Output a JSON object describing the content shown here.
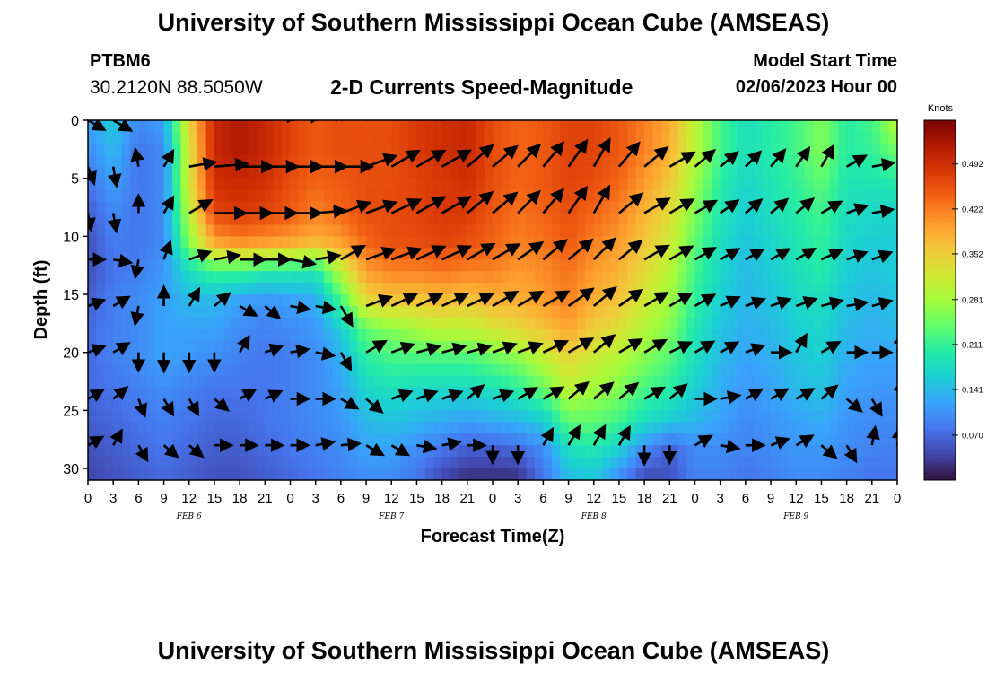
{
  "header": {
    "title": "University of Southern Mississippi Ocean Cube (AMSEAS)",
    "station_id": "PTBM6",
    "coordinates": "30.2120N  88.5050W",
    "subtitle": "2-D Currents Speed-Magnitude",
    "model_start_label": "Model Start Time",
    "model_start_value": "02/06/2023 Hour 00"
  },
  "footer": {
    "title": "University of Southern Mississippi Ocean Cube (AMSEAS)"
  },
  "chart_data": {
    "type": "heatmap",
    "title": "2-D Currents Speed-Magnitude",
    "xlabel": "Forecast Time(Z)",
    "ylabel": "Depth (ft)",
    "x_tick_labels": [
      "0",
      "3",
      "6",
      "9",
      "12",
      "15",
      "18",
      "21",
      "0",
      "3",
      "6",
      "9",
      "12",
      "15",
      "18",
      "21",
      "0",
      "3",
      "6",
      "9",
      "12",
      "15",
      "18",
      "21",
      "0",
      "3",
      "6",
      "9",
      "12",
      "15",
      "18",
      "21",
      "0"
    ],
    "x_hours": [
      0,
      3,
      6,
      9,
      12,
      15,
      18,
      21,
      24,
      27,
      30,
      33,
      36,
      39,
      42,
      45,
      48,
      51,
      54,
      57,
      60,
      63,
      66,
      69,
      72,
      75,
      78,
      81,
      84,
      87,
      90,
      93,
      96
    ],
    "day_labels": [
      {
        "label": "FEB 6",
        "hour": 12
      },
      {
        "label": "FEB 7",
        "hour": 36
      },
      {
        "label": "FEB 8",
        "hour": 60
      },
      {
        "label": "FEB 9",
        "hour": 84
      }
    ],
    "xlim": [
      0,
      96
    ],
    "y_ticks": [
      0,
      5,
      10,
      15,
      20,
      25,
      30
    ],
    "ylim": [
      0,
      31
    ],
    "y_inverted": true,
    "colorbar": {
      "title": "Knots",
      "ticks": [
        "0.492",
        "0.422",
        "0.352",
        "0.281",
        "0.211",
        "0.141",
        "0.070"
      ],
      "tick_values": [
        0.492,
        0.422,
        0.352,
        0.281,
        0.211,
        0.141,
        0.07
      ],
      "range": [
        0,
        0.56
      ],
      "colormap": [
        "#30123b",
        "#4145ab",
        "#4675ed",
        "#39a2fc",
        "#1bcfd4",
        "#24eca6",
        "#61fc6c",
        "#a4fc3b",
        "#d1e834",
        "#f3c63a",
        "#fe9b2d",
        "#f36315",
        "#d93806",
        "#b11901",
        "#7a0403"
      ]
    },
    "speed_knots": [
      [
        0.12,
        0.16,
        0.1,
        0.12,
        0.34,
        0.5,
        0.52,
        0.5,
        0.47,
        0.45,
        0.46,
        0.46,
        0.46,
        0.48,
        0.49,
        0.5,
        0.46,
        0.44,
        0.45,
        0.47,
        0.47,
        0.45,
        0.42,
        0.39,
        0.3,
        0.22,
        0.18,
        0.2,
        0.22,
        0.26,
        0.2,
        0.22,
        0.3
      ],
      [
        0.1,
        0.14,
        0.08,
        0.1,
        0.32,
        0.5,
        0.52,
        0.5,
        0.47,
        0.45,
        0.46,
        0.46,
        0.46,
        0.48,
        0.49,
        0.5,
        0.46,
        0.44,
        0.45,
        0.47,
        0.47,
        0.45,
        0.42,
        0.38,
        0.3,
        0.22,
        0.18,
        0.2,
        0.22,
        0.26,
        0.2,
        0.21,
        0.25
      ],
      [
        0.08,
        0.12,
        0.08,
        0.1,
        0.32,
        0.49,
        0.5,
        0.49,
        0.46,
        0.44,
        0.45,
        0.46,
        0.46,
        0.47,
        0.48,
        0.49,
        0.46,
        0.44,
        0.45,
        0.47,
        0.46,
        0.44,
        0.4,
        0.36,
        0.28,
        0.2,
        0.17,
        0.19,
        0.21,
        0.24,
        0.19,
        0.19,
        0.2
      ],
      [
        0.06,
        0.1,
        0.08,
        0.1,
        0.3,
        0.47,
        0.48,
        0.47,
        0.45,
        0.42,
        0.44,
        0.46,
        0.46,
        0.47,
        0.48,
        0.48,
        0.45,
        0.43,
        0.44,
        0.46,
        0.44,
        0.42,
        0.38,
        0.34,
        0.26,
        0.19,
        0.16,
        0.18,
        0.2,
        0.22,
        0.18,
        0.17,
        0.17
      ],
      [
        0.05,
        0.09,
        0.08,
        0.1,
        0.26,
        0.4,
        0.42,
        0.41,
        0.4,
        0.38,
        0.4,
        0.44,
        0.46,
        0.46,
        0.47,
        0.46,
        0.44,
        0.42,
        0.43,
        0.45,
        0.42,
        0.4,
        0.36,
        0.32,
        0.24,
        0.18,
        0.15,
        0.17,
        0.19,
        0.21,
        0.17,
        0.16,
        0.16
      ],
      [
        0.05,
        0.08,
        0.09,
        0.11,
        0.18,
        0.22,
        0.22,
        0.2,
        0.2,
        0.19,
        0.3,
        0.4,
        0.42,
        0.42,
        0.43,
        0.42,
        0.42,
        0.4,
        0.41,
        0.43,
        0.4,
        0.38,
        0.34,
        0.3,
        0.22,
        0.17,
        0.14,
        0.16,
        0.18,
        0.2,
        0.16,
        0.15,
        0.16
      ],
      [
        0.06,
        0.09,
        0.1,
        0.12,
        0.14,
        0.14,
        0.12,
        0.11,
        0.12,
        0.13,
        0.22,
        0.34,
        0.36,
        0.36,
        0.37,
        0.36,
        0.38,
        0.38,
        0.4,
        0.42,
        0.38,
        0.36,
        0.32,
        0.28,
        0.21,
        0.16,
        0.14,
        0.15,
        0.17,
        0.18,
        0.15,
        0.14,
        0.15
      ],
      [
        0.07,
        0.09,
        0.1,
        0.12,
        0.12,
        0.12,
        0.1,
        0.09,
        0.1,
        0.11,
        0.16,
        0.24,
        0.26,
        0.28,
        0.3,
        0.3,
        0.32,
        0.34,
        0.36,
        0.39,
        0.35,
        0.33,
        0.29,
        0.26,
        0.19,
        0.15,
        0.13,
        0.14,
        0.16,
        0.17,
        0.14,
        0.13,
        0.14
      ],
      [
        0.07,
        0.09,
        0.1,
        0.12,
        0.11,
        0.1,
        0.09,
        0.08,
        0.09,
        0.1,
        0.13,
        0.2,
        0.22,
        0.22,
        0.22,
        0.22,
        0.24,
        0.26,
        0.3,
        0.34,
        0.31,
        0.29,
        0.26,
        0.23,
        0.18,
        0.14,
        0.12,
        0.13,
        0.15,
        0.16,
        0.13,
        0.12,
        0.12
      ],
      [
        0.07,
        0.08,
        0.09,
        0.1,
        0.09,
        0.08,
        0.08,
        0.08,
        0.09,
        0.1,
        0.12,
        0.17,
        0.18,
        0.17,
        0.17,
        0.17,
        0.18,
        0.2,
        0.24,
        0.3,
        0.28,
        0.26,
        0.22,
        0.2,
        0.16,
        0.13,
        0.11,
        0.12,
        0.14,
        0.15,
        0.12,
        0.11,
        0.11
      ],
      [
        0.06,
        0.07,
        0.08,
        0.09,
        0.08,
        0.07,
        0.07,
        0.08,
        0.09,
        0.1,
        0.11,
        0.14,
        0.15,
        0.14,
        0.13,
        0.12,
        0.13,
        0.14,
        0.16,
        0.24,
        0.24,
        0.22,
        0.18,
        0.16,
        0.14,
        0.12,
        0.1,
        0.11,
        0.12,
        0.13,
        0.11,
        0.1,
        0.1
      ],
      [
        0.05,
        0.06,
        0.07,
        0.08,
        0.07,
        0.06,
        0.06,
        0.07,
        0.08,
        0.09,
        0.1,
        0.12,
        0.12,
        0.1,
        0.08,
        0.06,
        0.06,
        0.07,
        0.1,
        0.18,
        0.19,
        0.16,
        0.1,
        0.06,
        0.1,
        0.1,
        0.09,
        0.1,
        0.11,
        0.11,
        0.1,
        0.09,
        0.09
      ],
      [
        0.04,
        0.05,
        0.06,
        0.07,
        0.06,
        0.05,
        0.05,
        0.06,
        0.07,
        0.08,
        0.09,
        0.1,
        0.1,
        0.08,
        0.04,
        0.02,
        0.02,
        0.02,
        0.08,
        0.14,
        0.15,
        0.1,
        0.04,
        0.05,
        0.09,
        0.09,
        0.08,
        0.09,
        0.1,
        0.1,
        0.09,
        0.08,
        0.08
      ]
    ],
    "arrows": {
      "note": "current direction per depth row (degrees clockwise from east, screen frame), approximate",
      "depth_rows_ft": [
        0,
        4,
        8,
        12,
        16,
        20,
        24,
        28
      ],
      "hours": [
        0,
        3,
        6,
        9,
        12,
        15,
        18,
        21,
        24,
        27,
        30,
        33,
        36,
        39,
        42,
        45,
        48,
        51,
        54,
        57,
        60,
        63,
        66,
        69,
        72,
        75,
        78,
        81,
        84,
        87,
        90,
        93,
        96
      ],
      "directions_deg": [
        [
          30,
          30,
          -100,
          -70,
          -60,
          -30,
          -20,
          -10,
          -10,
          -15,
          -20,
          -25,
          -30,
          -30,
          -30,
          -40,
          -45,
          -50,
          -55,
          -60,
          -60,
          -50,
          -40,
          -30,
          -50,
          -45,
          -50,
          -50,
          -55,
          -60,
          -40,
          -30,
          0
        ],
        [
          70,
          80,
          -100,
          -60,
          -10,
          -5,
          0,
          0,
          0,
          0,
          0,
          -20,
          -30,
          -30,
          -30,
          -40,
          -40,
          -45,
          -50,
          -55,
          -60,
          -50,
          -40,
          -30,
          -40,
          -40,
          -45,
          -50,
          -55,
          -60,
          -30,
          -10,
          -5
        ],
        [
          80,
          80,
          -90,
          -60,
          -30,
          0,
          0,
          0,
          0,
          -5,
          -20,
          -20,
          -25,
          -30,
          -30,
          -40,
          -40,
          -45,
          -50,
          -55,
          -60,
          -40,
          -30,
          -30,
          -30,
          -35,
          -40,
          -40,
          -40,
          -30,
          -20,
          -10,
          -10
        ],
        [
          0,
          10,
          100,
          -70,
          -20,
          -10,
          0,
          0,
          10,
          -10,
          -30,
          -20,
          -20,
          -25,
          -25,
          -30,
          -30,
          -35,
          -40,
          -40,
          -45,
          -40,
          -30,
          -30,
          -30,
          -30,
          -30,
          -30,
          -30,
          -25,
          -20,
          -20,
          -30
        ],
        [
          -20,
          -30,
          100,
          -90,
          -60,
          -40,
          30,
          40,
          10,
          10,
          60,
          -20,
          -25,
          -25,
          -25,
          -25,
          -30,
          -30,
          -30,
          -35,
          -40,
          -35,
          -30,
          -30,
          -30,
          -25,
          -20,
          -20,
          -20,
          -15,
          -10,
          -15,
          -45
        ],
        [
          -20,
          -30,
          90,
          90,
          90,
          90,
          -60,
          -20,
          -10,
          10,
          60,
          -30,
          -20,
          -15,
          -15,
          -15,
          -20,
          -20,
          -25,
          -30,
          -40,
          -30,
          -30,
          -25,
          -30,
          -30,
          -20,
          0,
          -60,
          -30,
          0,
          0,
          -70
        ],
        [
          -30,
          -40,
          70,
          60,
          60,
          40,
          -30,
          -25,
          0,
          0,
          30,
          40,
          -20,
          -20,
          -20,
          -40,
          -20,
          -30,
          -30,
          -40,
          -40,
          -40,
          -30,
          -40,
          0,
          -10,
          -30,
          -30,
          -30,
          -40,
          40,
          60,
          -70
        ],
        [
          -30,
          -60,
          60,
          40,
          40,
          0,
          0,
          0,
          0,
          -10,
          -5,
          30,
          30,
          10,
          -10,
          0,
          90,
          90,
          -60,
          -60,
          -60,
          -60,
          90,
          90,
          -30,
          10,
          0,
          -20,
          -30,
          40,
          60,
          -80,
          -80
        ]
      ]
    }
  }
}
